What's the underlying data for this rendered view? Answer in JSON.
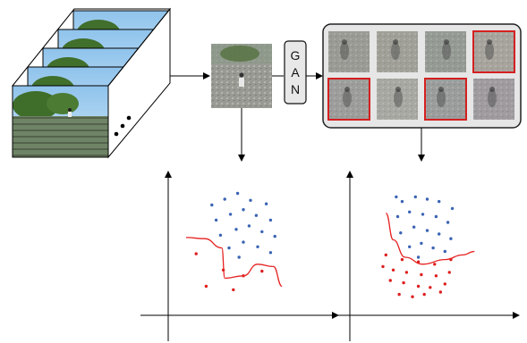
{
  "gan_block": {
    "letters": [
      "G",
      "A",
      "N"
    ]
  },
  "colors": {
    "majority_dots": "#3a64b4",
    "minority_dots": "#dd1f1f",
    "boundary_line": "#e62020",
    "highlight_border": "#d42020",
    "panel_border": "#222222",
    "panel_fill": "#e6e6e6",
    "axis": "#000000"
  },
  "video_cube": {
    "frame_count": 5,
    "icon_names": [
      "video-frame-stack",
      "ellipsis-dots"
    ]
  },
  "generated_samples": {
    "tile_count": 8,
    "highlighted_tiles": [
      3,
      4,
      6
    ]
  },
  "scatter_left": {
    "majority_points": [
      [
        0.23,
        0.15
      ],
      [
        0.32,
        0.1
      ],
      [
        0.41,
        0.05
      ],
      [
        0.5,
        0.11
      ],
      [
        0.61,
        0.14
      ],
      [
        0.26,
        0.28
      ],
      [
        0.36,
        0.23
      ],
      [
        0.45,
        0.19
      ],
      [
        0.54,
        0.24
      ],
      [
        0.64,
        0.28
      ],
      [
        0.29,
        0.41
      ],
      [
        0.4,
        0.36
      ],
      [
        0.49,
        0.33
      ],
      [
        0.58,
        0.38
      ],
      [
        0.67,
        0.42
      ],
      [
        0.35,
        0.52
      ],
      [
        0.45,
        0.47
      ],
      [
        0.55,
        0.51
      ],
      [
        0.64,
        0.56
      ],
      [
        0.42,
        0.6
      ]
    ],
    "minority_points": [
      [
        0.12,
        0.57
      ],
      [
        0.31,
        0.71
      ],
      [
        0.45,
        0.76
      ],
      [
        0.58,
        0.72
      ],
      [
        0.19,
        0.85
      ],
      [
        0.38,
        0.88
      ]
    ],
    "boundary": [
      [
        0.05,
        0.43
      ],
      [
        0.18,
        0.44
      ],
      [
        0.3,
        0.52
      ],
      [
        0.32,
        0.78
      ],
      [
        0.45,
        0.76
      ],
      [
        0.55,
        0.66
      ],
      [
        0.66,
        0.68
      ],
      [
        0.72,
        0.85
      ]
    ]
  },
  "scatter_right": {
    "majority_points": [
      [
        0.33,
        0.12
      ],
      [
        0.42,
        0.08
      ],
      [
        0.5,
        0.1
      ],
      [
        0.58,
        0.12
      ],
      [
        0.67,
        0.18
      ],
      [
        0.3,
        0.25
      ],
      [
        0.38,
        0.21
      ],
      [
        0.47,
        0.23
      ],
      [
        0.56,
        0.25
      ],
      [
        0.64,
        0.3
      ],
      [
        0.32,
        0.39
      ],
      [
        0.41,
        0.34
      ],
      [
        0.5,
        0.37
      ],
      [
        0.58,
        0.4
      ],
      [
        0.66,
        0.44
      ],
      [
        0.38,
        0.51
      ],
      [
        0.46,
        0.48
      ],
      [
        0.54,
        0.52
      ],
      [
        0.62,
        0.55
      ],
      [
        0.44,
        0.6
      ],
      [
        0.29,
        0.08
      ]
    ],
    "minority_points": [
      [
        0.22,
        0.58
      ],
      [
        0.33,
        0.62
      ],
      [
        0.44,
        0.64
      ],
      [
        0.55,
        0.66
      ],
      [
        0.66,
        0.62
      ],
      [
        0.2,
        0.68
      ],
      [
        0.27,
        0.71
      ],
      [
        0.36,
        0.73
      ],
      [
        0.46,
        0.75
      ],
      [
        0.56,
        0.76
      ],
      [
        0.65,
        0.73
      ],
      [
        0.25,
        0.8
      ],
      [
        0.34,
        0.82
      ],
      [
        0.44,
        0.85
      ],
      [
        0.52,
        0.86
      ],
      [
        0.62,
        0.83
      ],
      [
        0.31,
        0.92
      ],
      [
        0.4,
        0.94
      ],
      [
        0.48,
        0.92
      ],
      [
        0.59,
        0.9
      ]
    ],
    "boundary": [
      [
        0.22,
        0.22
      ],
      [
        0.27,
        0.45
      ],
      [
        0.35,
        0.6
      ],
      [
        0.47,
        0.66
      ],
      [
        0.62,
        0.62
      ],
      [
        0.74,
        0.58
      ],
      [
        0.82,
        0.55
      ]
    ]
  }
}
